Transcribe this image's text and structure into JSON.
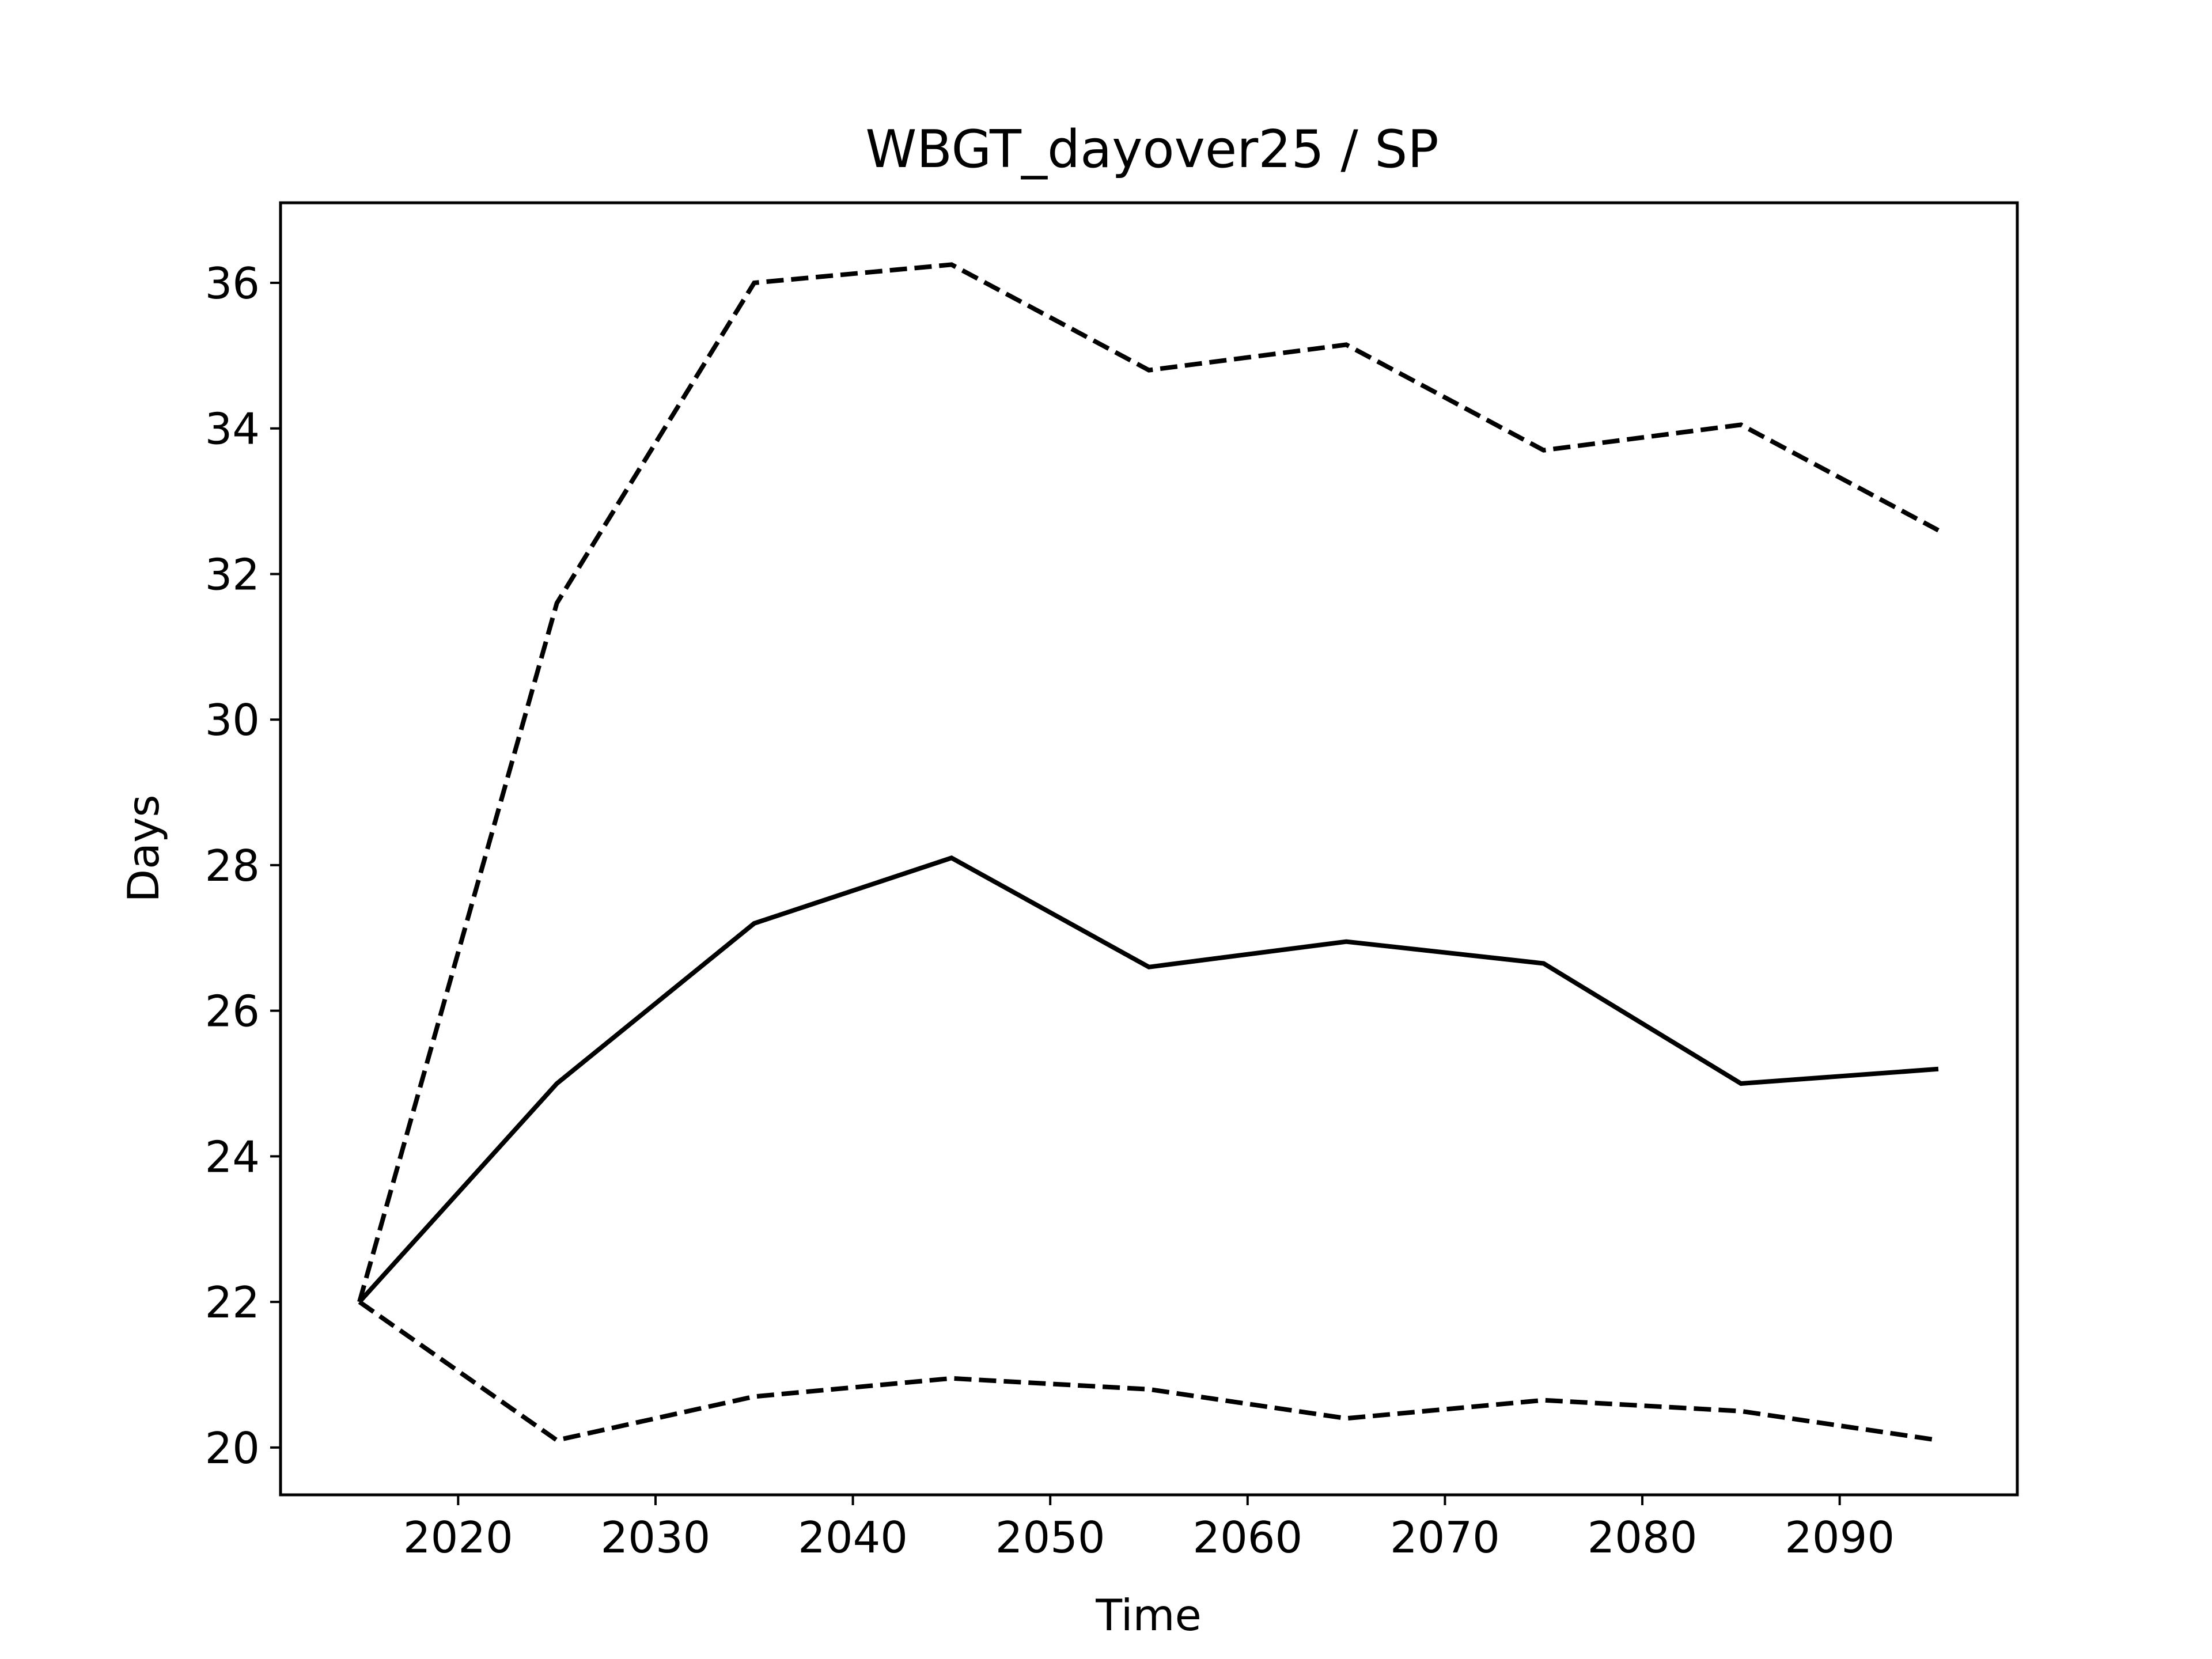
{
  "chart_data": {
    "type": "line",
    "title": "WBGT_dayover25 / SP",
    "xlabel": "Time",
    "ylabel": "Days",
    "xlim": [
      2011,
      2099
    ],
    "ylim": [
      19.35,
      37.1
    ],
    "xticks": [
      2020,
      2030,
      2040,
      2050,
      2060,
      2070,
      2080,
      2090
    ],
    "yticks": [
      20,
      22,
      24,
      26,
      28,
      30,
      32,
      34,
      36
    ],
    "grid": false,
    "legend": "none",
    "x": [
      2015,
      2025,
      2035,
      2045,
      2055,
      2065,
      2075,
      2085,
      2095
    ],
    "series": [
      {
        "style": "dashed",
        "color": "#000000",
        "values": [
          22.0,
          31.6,
          36.0,
          36.25,
          34.8,
          35.15,
          33.7,
          34.05,
          32.6
        ]
      },
      {
        "style": "solid",
        "color": "#000000",
        "values": [
          22.0,
          25.0,
          27.2,
          28.1,
          26.6,
          26.95,
          26.65,
          25.0,
          25.2
        ]
      },
      {
        "style": "dashed",
        "color": "#000000",
        "values": [
          22.0,
          20.1,
          20.7,
          20.95,
          20.8,
          20.4,
          20.65,
          20.5,
          20.1
        ]
      }
    ]
  }
}
